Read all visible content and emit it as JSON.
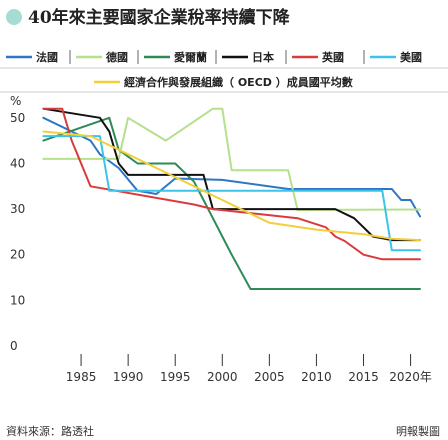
{
  "header": {
    "title": "40年來主要國家企業稅率持續下降"
  },
  "chart_data": {
    "type": "line",
    "title": "40年來主要國家企業稅率持續下降",
    "ylabel": "%",
    "ylim": [
      0,
      55
    ],
    "yticks": [
      0,
      10,
      20,
      30,
      40,
      50
    ],
    "xlim": [
      1980,
      2021
    ],
    "xticks": [
      1985,
      1990,
      1995,
      2000,
      2005,
      2010,
      2015,
      2020
    ],
    "xtick_labels": [
      "1985",
      "1990",
      "1995",
      "2000",
      "2005",
      "2010",
      "2015",
      "2020年"
    ],
    "grid": false,
    "legend": "top",
    "series": [
      {
        "name": "法國",
        "color": "#2e77c6",
        "x": [
          1981,
          1986,
          1987,
          1989,
          1991,
          1993,
          1995,
          2000,
          2007,
          2018,
          2019,
          2020,
          2021
        ],
        "y": [
          50,
          45,
          42,
          39,
          34,
          33.3,
          36.7,
          36.4,
          34.4,
          34.4,
          32,
          32,
          28.4
        ]
      },
      {
        "name": "德國",
        "color": "#b5e08c",
        "x": [
          1981,
          1989,
          1990,
          1994,
          1999,
          2000,
          2001,
          2007,
          2008,
          2021
        ],
        "y": [
          41,
          41,
          50,
          45,
          52,
          52,
          38.5,
          38.5,
          29.8,
          29.9
        ]
      },
      {
        "name": "愛爾蘭",
        "color": "#2e8b57",
        "x": [
          1981,
          1988,
          1989,
          1991,
          1995,
          1997,
          1998,
          1999,
          2000,
          2001,
          2003,
          2021
        ],
        "y": [
          45,
          50,
          43,
          40,
          40,
          36,
          32,
          28,
          24,
          20,
          12.5,
          12.5
        ]
      },
      {
        "name": "日本",
        "color": "#111111",
        "x": [
          1981,
          1987,
          1988,
          1989,
          1990,
          1998,
          1999,
          2012,
          2014,
          2015,
          2016,
          2018,
          2021
        ],
        "y": [
          52,
          50,
          47,
          40,
          37.5,
          37.5,
          30,
          30,
          28,
          26,
          24,
          23.2,
          23.2
        ]
      },
      {
        "name": "英國",
        "color": "#d93b3b",
        "x": [
          1981,
          1983,
          1984,
          1986,
          1997,
          1999,
          2008,
          2011,
          2012,
          2013,
          2015,
          2017,
          2021
        ],
        "y": [
          52,
          52,
          45,
          35,
          31,
          30,
          28,
          26,
          24,
          23,
          20,
          19,
          19
        ]
      },
      {
        "name": "美國",
        "color": "#3ec3e8",
        "x": [
          1981,
          1987,
          1988,
          2017,
          2018,
          2021
        ],
        "y": [
          46,
          46,
          34,
          34,
          21,
          21
        ]
      },
      {
        "name": "經濟合作與發展組織（ OECD ）成員國平均數",
        "color": "#f2cf3a",
        "x": [
          1981,
          1986,
          1990,
          1995,
          2000,
          2005,
          2010,
          2015,
          2018,
          2021
        ],
        "y": [
          47,
          46,
          42,
          37,
          32,
          27,
          25.5,
          24.5,
          23.5,
          23.2
        ]
      }
    ]
  },
  "footer": {
    "source": "資料來源：路透社",
    "credit": "明報製圖"
  }
}
